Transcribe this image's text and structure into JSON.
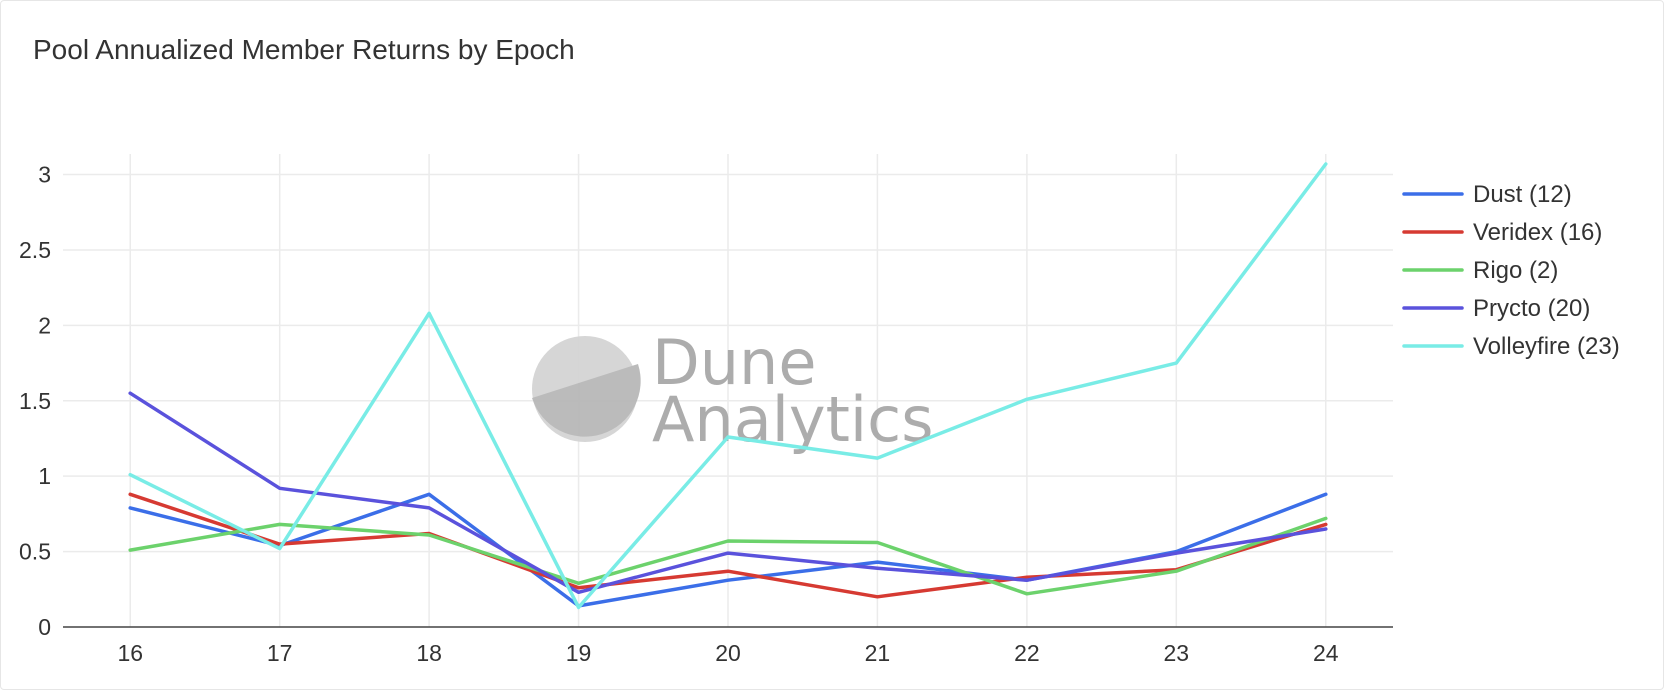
{
  "chart_data": {
    "type": "line",
    "title": "Pool Annualized Member Returns by Epoch",
    "xlabel": "",
    "ylabel": "",
    "x": [
      16,
      17,
      18,
      19,
      20,
      21,
      22,
      23,
      24
    ],
    "xlim": [
      15.55,
      24.45
    ],
    "ylim": [
      0,
      3.07
    ],
    "y_ticks": [
      0,
      0.5,
      1,
      1.5,
      2,
      2.5,
      3
    ],
    "y_tick_labels": [
      "0",
      "0.5",
      "1",
      "1.5",
      "2",
      "2.5",
      "3"
    ],
    "grid": true,
    "legend_position": "right",
    "series": [
      {
        "name": "Dust (12)",
        "color": "#3b6ee8",
        "values": [
          0.79,
          0.54,
          0.88,
          0.14,
          0.31,
          0.43,
          0.31,
          0.5,
          0.88
        ]
      },
      {
        "name": "Veridex (16)",
        "color": "#d63a32",
        "values": [
          0.88,
          0.55,
          0.62,
          0.26,
          0.37,
          0.2,
          0.33,
          0.38,
          0.68
        ]
      },
      {
        "name": "Rigo (2)",
        "color": "#6cd26c",
        "values": [
          0.51,
          0.68,
          0.61,
          0.29,
          0.57,
          0.56,
          0.22,
          0.37,
          0.72
        ]
      },
      {
        "name": "Prycto (20)",
        "color": "#5a52dc",
        "values": [
          1.55,
          0.92,
          0.79,
          0.23,
          0.49,
          0.39,
          0.31,
          0.49,
          0.65
        ]
      },
      {
        "name": "Volleyfire (23)",
        "color": "#79ece6",
        "values": [
          1.01,
          0.52,
          2.08,
          0.13,
          1.26,
          1.12,
          1.51,
          1.75,
          3.07
        ]
      }
    ]
  },
  "watermark": {
    "line1": "Dune",
    "line2": "Analytics",
    "color": "#bdbdbd"
  }
}
